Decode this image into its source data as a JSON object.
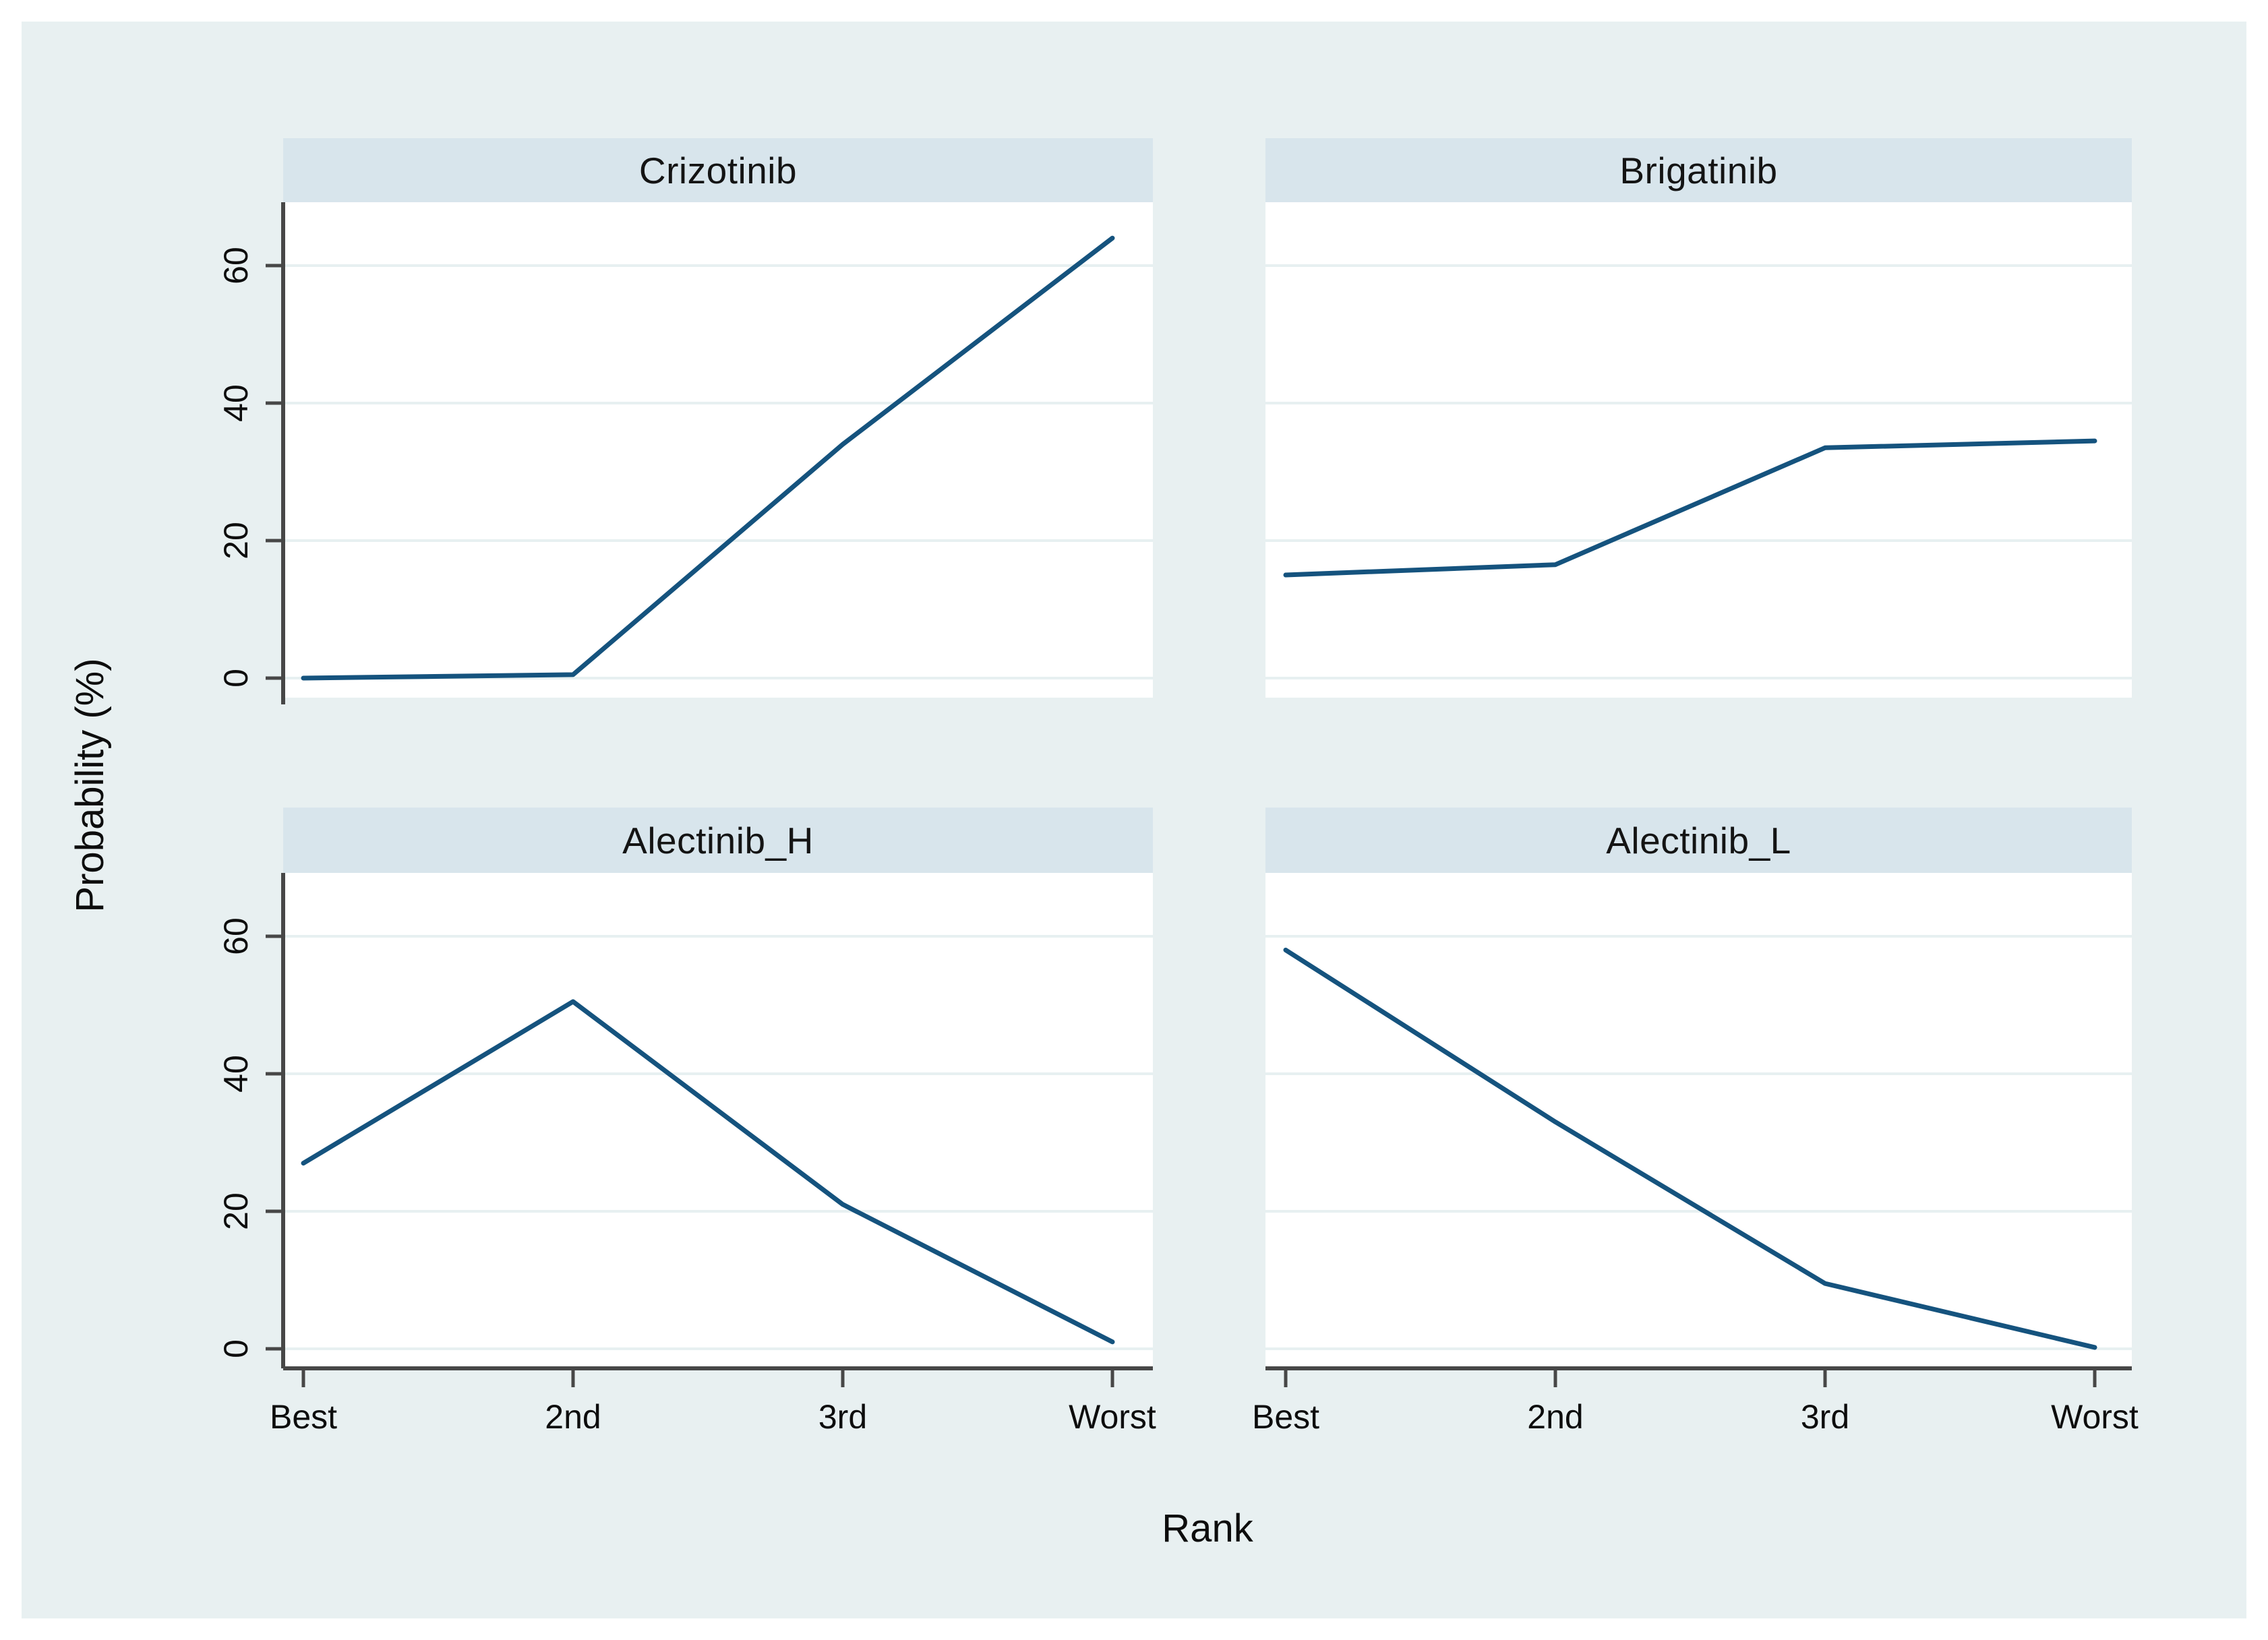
{
  "figure": {
    "background_color": "#e8f0f1",
    "panel_header_color": "#d8e5ec",
    "plot_background_color": "#ffffff",
    "gridline_color": "#e7f0f1",
    "axis_color": "#474747",
    "line_color": "#15537e"
  },
  "chart_data": {
    "type": "line",
    "layout": "2x2-small-multiples",
    "title": "",
    "xlabel": "Rank",
    "ylabel": "Probability (%)",
    "x_categories": [
      "Best",
      "2nd",
      "3rd",
      "Worst"
    ],
    "y_ticks": [
      0,
      20,
      40,
      60
    ],
    "ylim": [
      -3,
      69
    ],
    "grid": "horizontal-only",
    "legend": "none",
    "panels": [
      {
        "title": "Crizotinib",
        "values": [
          0,
          0.5,
          34,
          64
        ]
      },
      {
        "title": "Brigatinib",
        "values": [
          15,
          16.5,
          33.5,
          34.5
        ]
      },
      {
        "title": "Alectinib_H",
        "values": [
          27,
          50.5,
          21,
          1
        ]
      },
      {
        "title": "Alectinib_L",
        "values": [
          58,
          33,
          9.5,
          0.2
        ]
      }
    ]
  }
}
